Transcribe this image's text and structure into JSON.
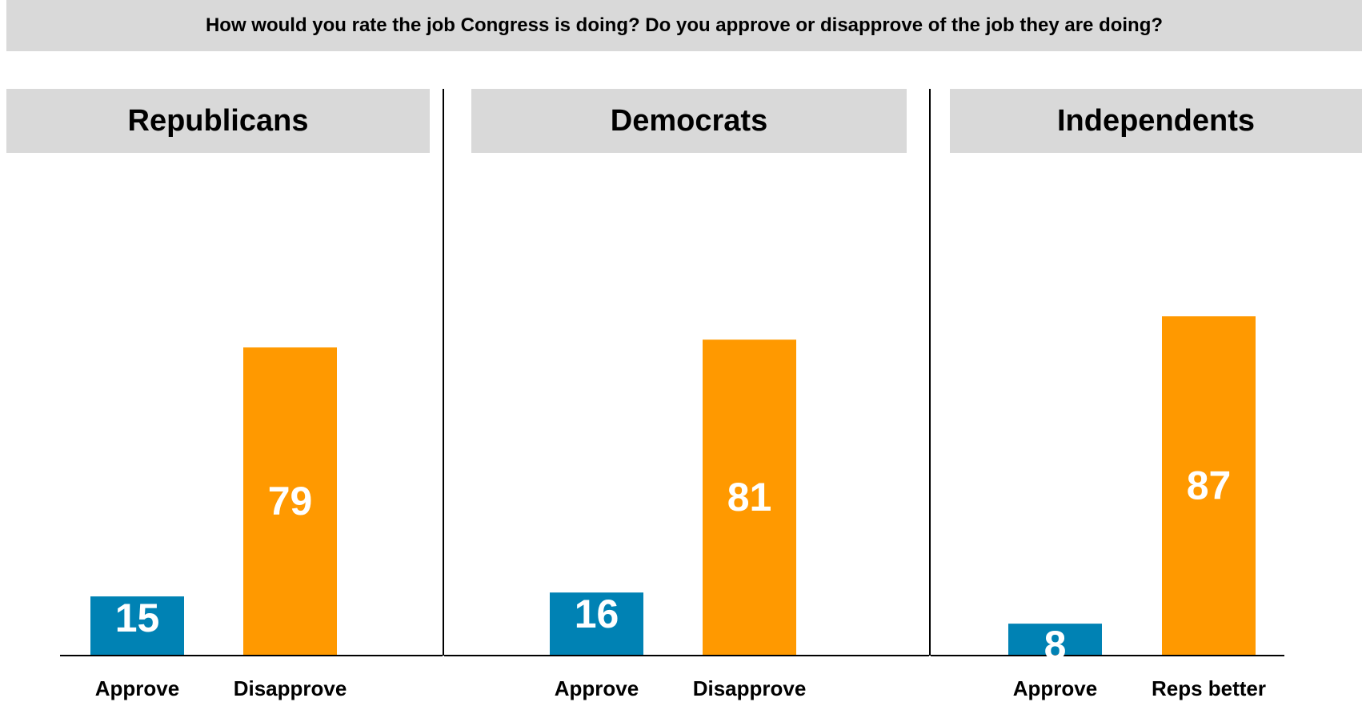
{
  "question": "How would you rate the job Congress is doing? Do you approve or disapprove of the job they are doing?",
  "colors": {
    "approve": "#0082b4",
    "disapprove": "#ff9900",
    "header_bg": "#d9d9d9"
  },
  "chart_data": [
    {
      "type": "bar",
      "title": "Republicans",
      "categories": [
        "Approve",
        "Disapprove"
      ],
      "values": [
        15,
        79
      ]
    },
    {
      "type": "bar",
      "title": "Democrats",
      "categories": [
        "Approve",
        "Disapprove"
      ],
      "values": [
        16,
        81
      ]
    },
    {
      "type": "bar",
      "title": "Independents",
      "categories": [
        "Approve",
        "Reps better"
      ],
      "values": [
        8,
        87
      ]
    }
  ]
}
